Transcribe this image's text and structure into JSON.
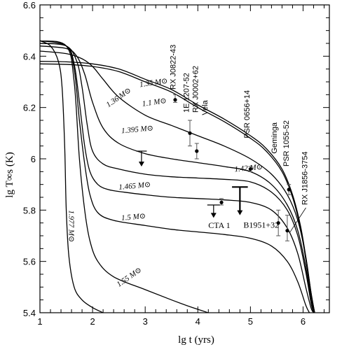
{
  "chart_data": {
    "type": "line",
    "title": "",
    "xlabel": "lg t   (yrs)",
    "ylabel": "lg T∞s  (K)",
    "xlim": [
      1,
      6.5
    ],
    "ylim": [
      5.4,
      6.6
    ],
    "xticks": [
      1,
      2,
      3,
      4,
      5,
      6
    ],
    "xtick_labels": [
      "1",
      "2",
      "3",
      "4",
      "5",
      "6"
    ],
    "yticks": [
      5.4,
      5.6,
      5.8,
      6.0,
      6.2,
      6.4,
      6.6
    ],
    "ytick_labels": [
      "5.4",
      "5.6",
      "5.8",
      "6",
      "6.2",
      "6.4",
      "6.6"
    ],
    "grid": false,
    "series": [
      {
        "name": "1.35 M⊙",
        "x": [
          1,
          1.5,
          2,
          2.5,
          3,
          3.5,
          4,
          4.5,
          5,
          5.3,
          5.6,
          5.8,
          5.95,
          6.05,
          6.15,
          6.22
        ],
        "y": [
          6.38,
          6.378,
          6.37,
          6.35,
          6.31,
          6.27,
          6.21,
          6.155,
          6.09,
          6.04,
          5.96,
          5.86,
          5.74,
          5.62,
          5.48,
          5.4
        ]
      },
      {
        "name": "1.1 M⊙",
        "x": [
          1,
          1.5,
          2,
          2.5,
          3,
          3.5,
          4,
          4.5,
          5,
          5.3,
          5.6,
          5.8,
          5.95,
          6.05,
          6.15,
          6.22
        ],
        "y": [
          6.37,
          6.368,
          6.36,
          6.34,
          6.3,
          6.26,
          6.2,
          6.145,
          6.08,
          6.03,
          5.95,
          5.85,
          5.73,
          5.61,
          5.47,
          5.4
        ]
      },
      {
        "name": "1.36 M⊙",
        "x": [
          1,
          1.5,
          1.8,
          2,
          2.2,
          2.5,
          3,
          3.5,
          4,
          4.5,
          5,
          5.4,
          5.7,
          5.9,
          6.05,
          6.15,
          6.22
        ],
        "y": [
          6.42,
          6.41,
          6.39,
          6.36,
          6.31,
          6.24,
          6.17,
          6.13,
          6.09,
          6.05,
          6.0,
          5.94,
          5.86,
          5.76,
          5.62,
          5.48,
          5.4
        ]
      },
      {
        "name": "1.395 M⊙",
        "x": [
          1,
          1.5,
          1.7,
          1.85,
          2,
          2.2,
          2.5,
          3,
          3.5,
          4,
          4.5,
          5,
          5.4,
          5.7,
          5.9,
          6.05,
          6.15,
          6.22
        ],
        "y": [
          6.44,
          6.43,
          6.4,
          6.33,
          6.22,
          6.12,
          6.06,
          6.02,
          6.0,
          5.985,
          5.97,
          5.95,
          5.9,
          5.82,
          5.72,
          5.58,
          5.45,
          5.4
        ]
      },
      {
        "name": "1.42 M⊙",
        "x": [
          1,
          1.5,
          1.7,
          1.8,
          1.9,
          2,
          2.2,
          2.5,
          3,
          3.5,
          4,
          4.5,
          5,
          5.4,
          5.7,
          5.9,
          6.05,
          6.15,
          6.2
        ],
        "y": [
          6.45,
          6.44,
          6.38,
          6.28,
          6.13,
          6.03,
          5.98,
          5.96,
          5.94,
          5.93,
          5.925,
          5.92,
          5.91,
          5.87,
          5.8,
          5.7,
          5.56,
          5.44,
          5.4
        ]
      },
      {
        "name": "1.465 M⊙",
        "x": [
          1,
          1.5,
          1.65,
          1.75,
          1.85,
          1.95,
          2.1,
          2.3,
          2.6,
          3,
          3.5,
          4,
          4.5,
          5,
          5.4,
          5.7,
          5.9,
          6.05,
          6.15,
          6.2
        ],
        "y": [
          6.45,
          6.44,
          6.37,
          6.22,
          6.05,
          5.95,
          5.9,
          5.88,
          5.87,
          5.86,
          5.85,
          5.845,
          5.84,
          5.83,
          5.8,
          5.73,
          5.63,
          5.5,
          5.42,
          5.4
        ]
      },
      {
        "name": "1.5 M⊙",
        "x": [
          1,
          1.5,
          1.65,
          1.75,
          1.85,
          1.95,
          2.1,
          2.4,
          3,
          3.5,
          4,
          4.5,
          5,
          5.4,
          5.7,
          5.9,
          6.05,
          6.12
        ],
        "y": [
          6.46,
          6.44,
          6.35,
          6.15,
          5.98,
          5.86,
          5.79,
          5.76,
          5.74,
          5.725,
          5.715,
          5.705,
          5.69,
          5.66,
          5.6,
          5.52,
          5.43,
          5.4
        ]
      },
      {
        "name": "1.55 M⊙",
        "x": [
          1,
          1.5,
          1.65,
          1.75,
          1.85,
          1.95,
          2.1,
          2.4,
          3,
          3.5,
          3.9,
          4.2
        ],
        "y": [
          6.46,
          6.44,
          6.3,
          6.0,
          5.8,
          5.68,
          5.6,
          5.54,
          5.49,
          5.45,
          5.42,
          5.4
        ]
      },
      {
        "name": "1.977 M⊙",
        "x": [
          1,
          1.2,
          1.35,
          1.42,
          1.47,
          1.5,
          1.55,
          1.65,
          1.8,
          2.0,
          2.2
        ],
        "y": [
          6.46,
          6.44,
          6.38,
          6.28,
          6.05,
          5.8,
          5.62,
          5.5,
          5.45,
          5.42,
          5.4
        ]
      }
    ],
    "curve_labels": [
      {
        "text": "1.35 M⊙",
        "x": 2.9,
        "y": 6.28,
        "angle": -8
      },
      {
        "text": "1.1 M⊙",
        "x": 2.95,
        "y": 6.205,
        "angle": -8
      },
      {
        "text": "1.36 M⊙",
        "x": 2.3,
        "y": 6.2,
        "angle": -35
      },
      {
        "text": "1.395 M⊙",
        "x": 2.55,
        "y": 6.1,
        "angle": -5
      },
      {
        "text": "1.42 M⊙",
        "x": 4.7,
        "y": 5.95,
        "angle": -5
      },
      {
        "text": "1.465 M⊙",
        "x": 2.5,
        "y": 5.88,
        "angle": -5
      },
      {
        "text": "1.5 M⊙",
        "x": 2.55,
        "y": 5.76,
        "angle": -5
      },
      {
        "text": "1.55 M⊙",
        "x": 2.5,
        "y": 5.5,
        "angle": -35
      },
      {
        "text": "1.977 M⊙",
        "x": 1.55,
        "y": 5.8,
        "angle": 90
      }
    ],
    "observations": [
      {
        "name": "RX J0822-43",
        "x": 3.57,
        "y": 6.23,
        "yerr_low": 0.01,
        "yerr_high": 0.02,
        "label_x": 3.58,
        "label_y": 6.27,
        "label_angle": -90
      },
      {
        "name": "1E 1207-52",
        "x": 3.85,
        "y": 6.1,
        "yerr_low": 0.05,
        "yerr_high": 0.05,
        "label_x": 3.83,
        "label_y": 6.18,
        "label_angle": -90
      },
      {
        "name": "RX J0002+62",
        "x": 3.98,
        "y": 6.03,
        "yerr_low": 0.03,
        "yerr_high": 0.03,
        "label_x": 4.0,
        "label_y": 6.18,
        "label_angle": -90
      },
      {
        "name": "Vela",
        "x": 4.1,
        "y": 5.95,
        "yerr_low": 0,
        "yerr_high": 0,
        "hide_marker": true,
        "label_x": 4.18,
        "label_y": 6.17,
        "label_angle": -90
      },
      {
        "name": "PSR 0656+14",
        "x": 5.0,
        "y": 5.96,
        "yerr_low": 0.01,
        "yerr_high": 0.01,
        "label_x": 4.98,
        "label_y": 6.08,
        "label_angle": -90
      },
      {
        "name": "Geminga",
        "x": 5.53,
        "y": 5.75,
        "yerr_low": 0.05,
        "yerr_high": 0.05,
        "label_x": 5.5,
        "label_y": 6.02,
        "label_angle": -90
      },
      {
        "name": "PSR 1055-52",
        "x": 5.73,
        "y": 5.88,
        "yerr_low": 0.02,
        "yerr_high": 0.02,
        "label_x": 5.73,
        "label_y": 5.97,
        "label_angle": -90
      },
      {
        "name": "RX J1856-3754",
        "x": 5.7,
        "y": 5.72,
        "yerr_low": 0.04,
        "yerr_high": 0.06,
        "label_x": 6.08,
        "label_y": 5.82,
        "label_angle": -90
      },
      {
        "name": "CTA 1",
        "x": 4.45,
        "y": 5.83,
        "yerr_low": 0.01,
        "yerr_high": 0.015,
        "label_x": 4.2,
        "label_y": 5.73,
        "label_angle": 0
      }
    ],
    "upper_limits": [
      {
        "name": "",
        "x": 2.93,
        "y": 6.03,
        "arrow_to": 5.97,
        "bar_half_width": 0.1
      },
      {
        "name": "B1951+32",
        "x": 4.8,
        "y": 5.89,
        "arrow_to": 5.78,
        "bar_half_width": 0.15,
        "label_x": 4.6,
        "label_y": 5.78
      },
      {
        "name": "",
        "x": 4.3,
        "y": 5.82,
        "arrow_to": 5.77,
        "bar_half_width": 0.12
      }
    ]
  }
}
